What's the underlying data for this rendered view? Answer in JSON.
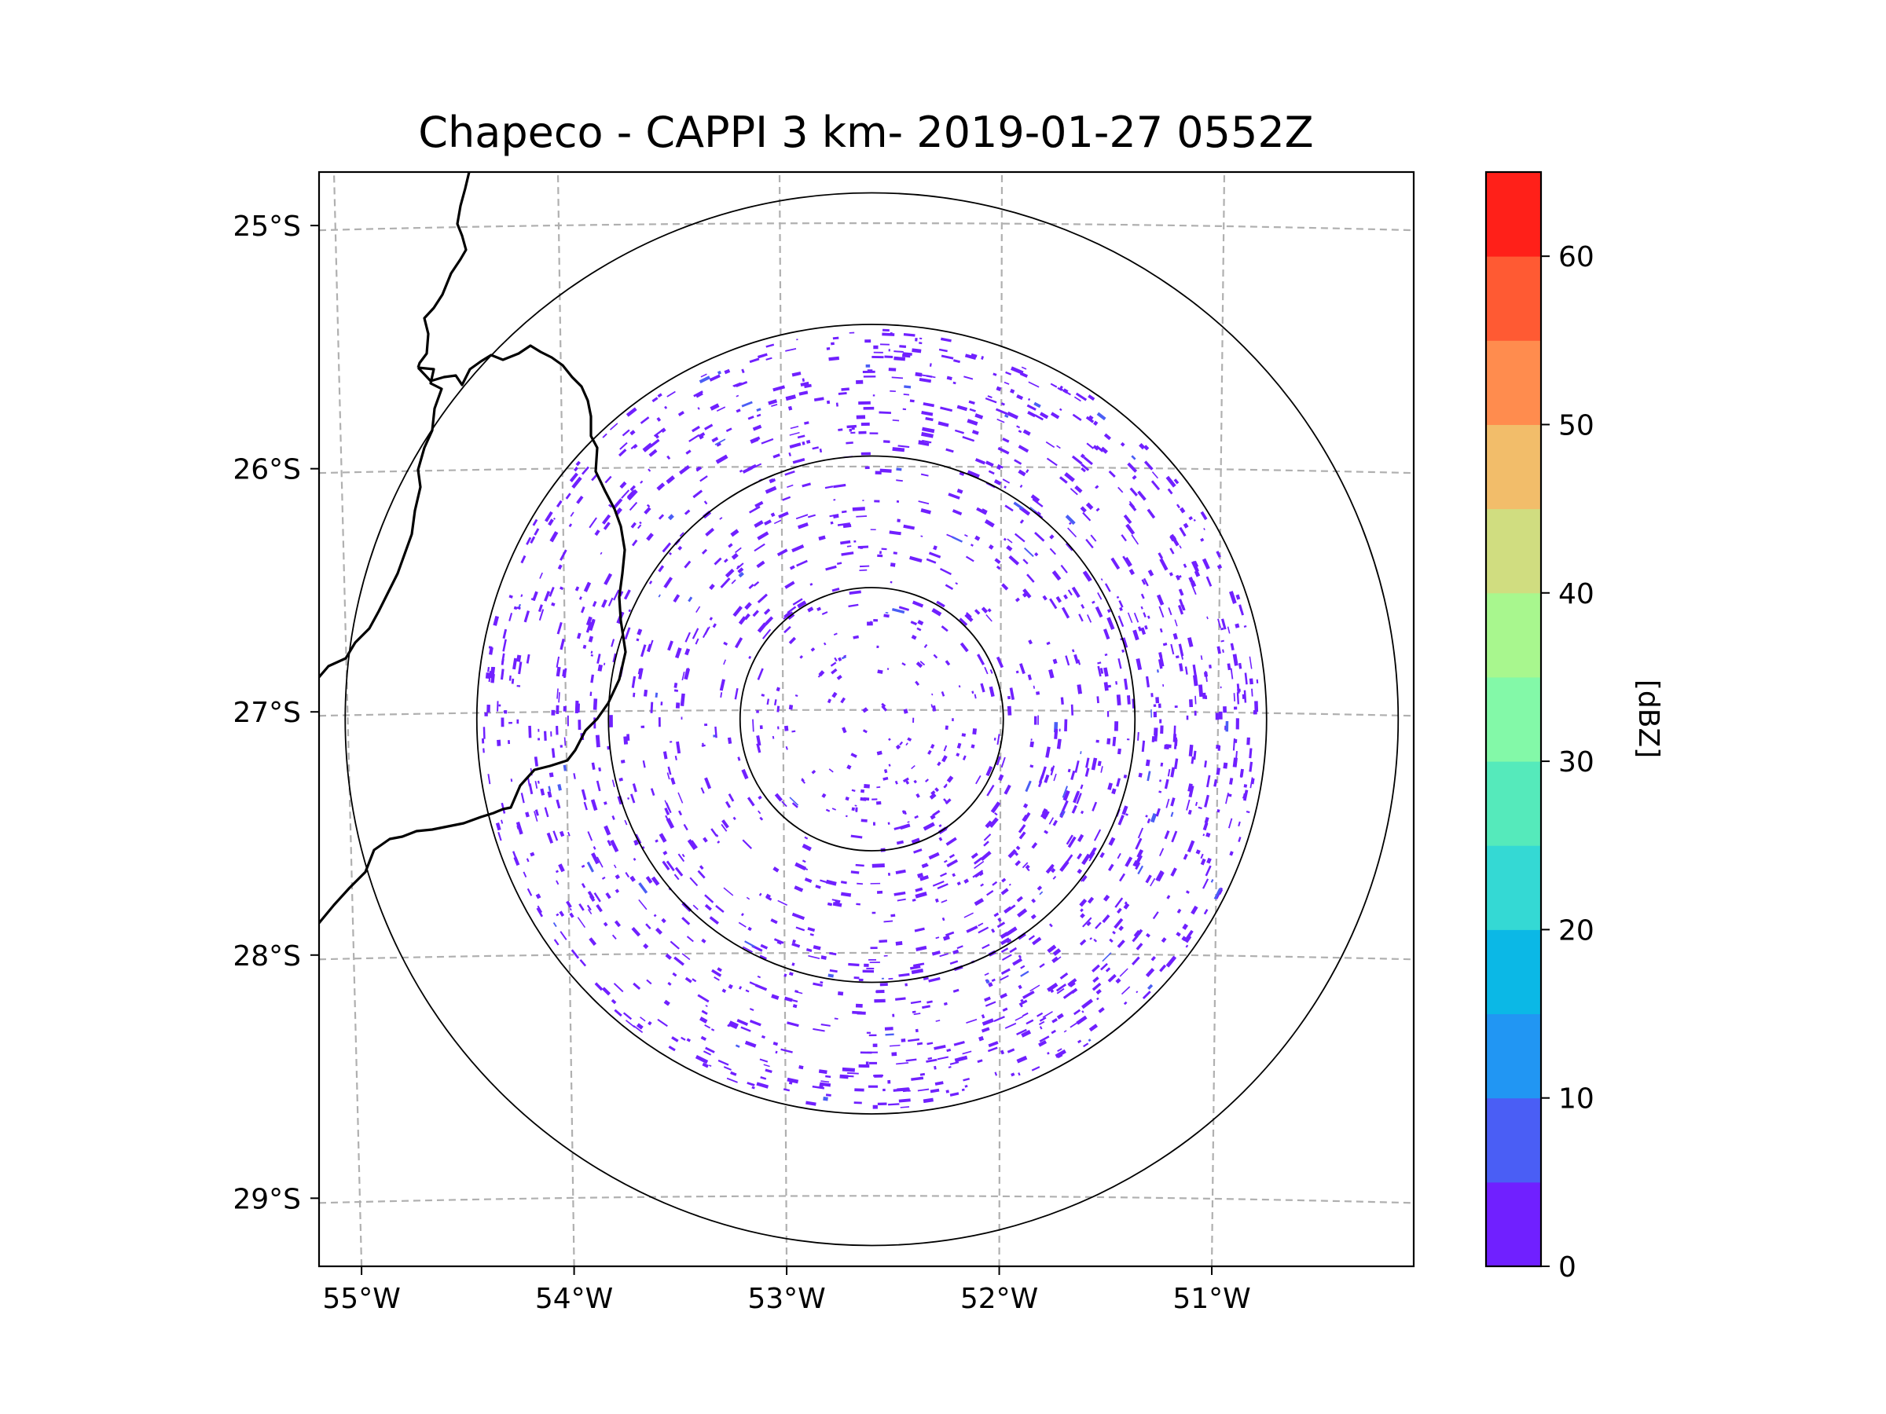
{
  "chart_data": {
    "type": "heatmap",
    "title": "Chapeco - CAPPI 3 km- 2019-01-27 0552Z",
    "xlabel": "",
    "ylabel": "",
    "x_ticks": [
      {
        "value": -55,
        "label": "55°W"
      },
      {
        "value": -54,
        "label": "54°W"
      },
      {
        "value": -53,
        "label": "53°W"
      },
      {
        "value": -52,
        "label": "52°W"
      },
      {
        "value": -51,
        "label": "51°W"
      }
    ],
    "y_ticks": [
      {
        "value": -25,
        "label": "25°S"
      },
      {
        "value": -26,
        "label": "26°S"
      },
      {
        "value": -27,
        "label": "27°S"
      },
      {
        "value": -28,
        "label": "28°S"
      },
      {
        "value": -29,
        "label": "29°S"
      }
    ],
    "xlim": [
      -55.2,
      -50.05
    ],
    "ylim": [
      -29.28,
      -24.78
    ],
    "radar_center": {
      "lon": -52.6,
      "lat": -27.03
    },
    "range_rings_km": [
      50,
      100,
      150,
      200
    ],
    "max_data_range_km": 150,
    "grid": true,
    "colorbar": {
      "label": "[dBZ]",
      "range": [
        0,
        65
      ],
      "bounds": [
        0,
        5,
        10,
        15,
        20,
        25,
        30,
        35,
        40,
        45,
        50,
        55,
        60,
        65
      ],
      "colors": [
        "#7020ff",
        "#4a5ef5",
        "#2196f3",
        "#0bb8e6",
        "#34d9d4",
        "#55eabb",
        "#83f9a8",
        "#a8f78e",
        "#d0dd80",
        "#f2bd6a",
        "#ff8c4e",
        "#ff5a33",
        "#ff2019"
      ],
      "tick_values": [
        0,
        10,
        20,
        30,
        40,
        50,
        60
      ],
      "tick_labels": [
        "0",
        "10",
        "20",
        "30",
        "40",
        "50",
        "60"
      ]
    },
    "echo_summary": {
      "dominant_class_dbz": [
        0,
        5
      ],
      "dominant_color": "#7020ff",
      "secondary_color": "#4a5ef5",
      "note_density": "higher toward east and south-east"
    }
  }
}
